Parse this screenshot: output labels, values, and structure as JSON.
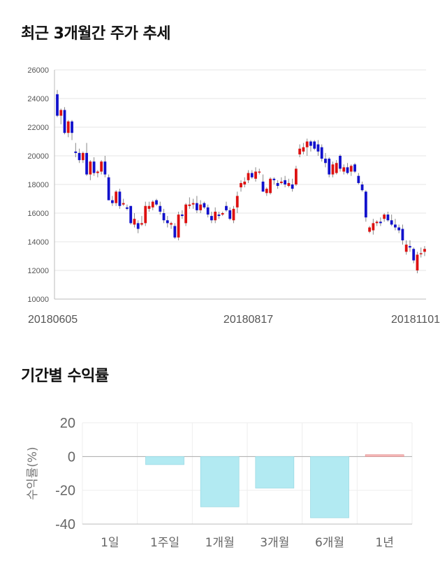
{
  "sections": {
    "price_title": "최근 3개월간 주가 추세",
    "return_title": "기간별 수익률"
  },
  "chart_data": [
    {
      "type": "candlestick",
      "title": "최근 3개월간 주가 추세",
      "y_ticks": [
        10000,
        12000,
        14000,
        16000,
        18000,
        20000,
        22000,
        24000,
        26000
      ],
      "ylim": [
        10000,
        26000
      ],
      "x_tick_labels": [
        "20180605",
        "20180817",
        "20181101"
      ],
      "x_tick_index": [
        0,
        52,
        105
      ],
      "grid": true,
      "colors": {
        "up": "#dd1111",
        "down": "#1111cc",
        "wick": "#888888"
      },
      "candles": [
        [
          24300,
          24600,
          22700,
          22800
        ],
        [
          22800,
          23300,
          22200,
          23200
        ],
        [
          23200,
          23400,
          21500,
          21600
        ],
        [
          21600,
          22500,
          21300,
          22400
        ],
        [
          22400,
          22500,
          21100,
          21600
        ],
        [
          20300,
          20900,
          19900,
          20200
        ],
        [
          20200,
          20500,
          19500,
          19700
        ],
        [
          19700,
          20300,
          19500,
          20200
        ],
        [
          20200,
          20900,
          18600,
          18700
        ],
        [
          18700,
          19700,
          18300,
          19600
        ],
        [
          19600,
          19900,
          18600,
          18800
        ],
        [
          18800,
          19000,
          18500,
          18900
        ],
        [
          18900,
          19700,
          18700,
          19600
        ],
        [
          19600,
          20000,
          18500,
          18700
        ],
        [
          18500,
          18700,
          16900,
          16900
        ],
        [
          16900,
          17200,
          16500,
          16700
        ],
        [
          16700,
          17600,
          16500,
          17500
        ],
        [
          17500,
          17700,
          16300,
          16500
        ],
        [
          16600,
          17000,
          16500,
          16700
        ],
        [
          16400,
          16600,
          16200,
          16300
        ],
        [
          16500,
          16500,
          15200,
          15300
        ],
        [
          15200,
          16000,
          15000,
          15600
        ],
        [
          15300,
          15500,
          14600,
          14900
        ],
        [
          15200,
          15800,
          15100,
          15300
        ],
        [
          15300,
          16800,
          15100,
          16500
        ],
        [
          16300,
          16800,
          16100,
          16500
        ],
        [
          16400,
          16900,
          16200,
          16800
        ],
        [
          16900,
          17000,
          16500,
          16600
        ],
        [
          16500,
          16800,
          15900,
          16100
        ],
        [
          16000,
          16300,
          15300,
          15500
        ],
        [
          15500,
          15800,
          15000,
          15300
        ],
        [
          15200,
          15400,
          14900,
          15300
        ],
        [
          15100,
          15300,
          14200,
          14300
        ],
        [
          14300,
          16100,
          14100,
          15900
        ],
        [
          15900,
          16200,
          15600,
          15800
        ],
        [
          15300,
          16700,
          15100,
          16600
        ],
        [
          16500,
          17100,
          16300,
          16600
        ],
        [
          16600,
          17000,
          16300,
          16700
        ],
        [
          16700,
          17200,
          16000,
          16200
        ],
        [
          16200,
          16900,
          16000,
          16600
        ],
        [
          16700,
          16800,
          16300,
          16400
        ],
        [
          16400,
          16600,
          15700,
          15900
        ],
        [
          15800,
          16100,
          15300,
          15500
        ],
        [
          15500,
          16400,
          15300,
          16100
        ],
        [
          15900,
          16100,
          15600,
          15800
        ],
        [
          15900,
          16100,
          15800,
          16000
        ],
        [
          16500,
          16800,
          16100,
          16200
        ],
        [
          16200,
          16400,
          15500,
          15600
        ],
        [
          15500,
          16500,
          15300,
          16300
        ],
        [
          16400,
          17500,
          16000,
          17200
        ],
        [
          17800,
          18300,
          17500,
          18100
        ],
        [
          18000,
          18500,
          17800,
          18200
        ],
        [
          18300,
          19000,
          18100,
          18800
        ],
        [
          18800,
          19000,
          18400,
          18500
        ],
        [
          18400,
          19200,
          18200,
          18900
        ],
        [
          18900,
          19100,
          18700,
          18900
        ],
        [
          18200,
          18700,
          17500,
          17500
        ],
        [
          17400,
          17800,
          17200,
          17700
        ],
        [
          17400,
          18500,
          17300,
          18400
        ],
        [
          18400,
          18500,
          18000,
          18300
        ],
        [
          18100,
          18300,
          17700,
          17900
        ],
        [
          18100,
          18500,
          18000,
          18200
        ],
        [
          18300,
          18600,
          17800,
          18000
        ],
        [
          17900,
          18400,
          17800,
          18100
        ],
        [
          18000,
          18400,
          17500,
          17700
        ],
        [
          18000,
          19300,
          17900,
          19100
        ],
        [
          20100,
          20800,
          19900,
          20500
        ],
        [
          20300,
          20900,
          20100,
          20600
        ],
        [
          20600,
          21200,
          20000,
          21000
        ],
        [
          21000,
          21100,
          20300,
          20700
        ],
        [
          21000,
          21100,
          20400,
          20500
        ],
        [
          20800,
          21100,
          20000,
          20300
        ],
        [
          20600,
          20800,
          19600,
          19800
        ],
        [
          19800,
          20200,
          19200,
          19500
        ],
        [
          19800,
          19900,
          18500,
          18700
        ],
        [
          18700,
          19600,
          18500,
          19400
        ],
        [
          18800,
          19700,
          18700,
          19500
        ],
        [
          20000,
          20100,
          18900,
          19100
        ],
        [
          18900,
          19400,
          18700,
          19200
        ],
        [
          19200,
          19500,
          18700,
          18800
        ],
        [
          18900,
          19400,
          18600,
          19300
        ],
        [
          19400,
          19500,
          18800,
          18900
        ],
        [
          18600,
          18800,
          18000,
          18100
        ],
        [
          18000,
          18200,
          17500,
          17600
        ],
        [
          17500,
          17600,
          15400,
          15700
        ],
        [
          14700,
          15100,
          14600,
          15000
        ],
        [
          14800,
          15600,
          14500,
          15300
        ],
        [
          15300,
          15500,
          15100,
          15400
        ],
        [
          15400,
          15700,
          15100,
          15300
        ],
        [
          15600,
          16000,
          15400,
          15900
        ],
        [
          15900,
          16100,
          15400,
          15500
        ],
        [
          15500,
          15900,
          15100,
          15200
        ],
        [
          15200,
          15600,
          14800,
          15000
        ],
        [
          15000,
          15200,
          14600,
          14800
        ],
        [
          14900,
          15200,
          13800,
          14100
        ],
        [
          13300,
          14100,
          13100,
          13800
        ],
        [
          13700,
          14100,
          13300,
          13600
        ],
        [
          13500,
          13600,
          12500,
          12700
        ],
        [
          12000,
          13300,
          11800,
          13100
        ],
        [
          13200,
          13600,
          12900,
          13200
        ],
        [
          13300,
          13700,
          13000,
          13500
        ]
      ]
    },
    {
      "type": "bar",
      "title": "기간별 수익률",
      "ylabel": "수익률(%)",
      "categories": [
        "1일",
        "1주일",
        "1개월",
        "3개월",
        "6개월",
        "1년"
      ],
      "values": [
        0.0,
        -4.8,
        -29.8,
        -18.7,
        -36.3,
        1.1
      ],
      "ylim": [
        -40,
        20
      ],
      "y_ticks": [
        20,
        0,
        -20,
        -40
      ],
      "colors": {
        "negative": "#b2eaf2",
        "positive": "#f4b4b4"
      },
      "grid": true
    }
  ]
}
